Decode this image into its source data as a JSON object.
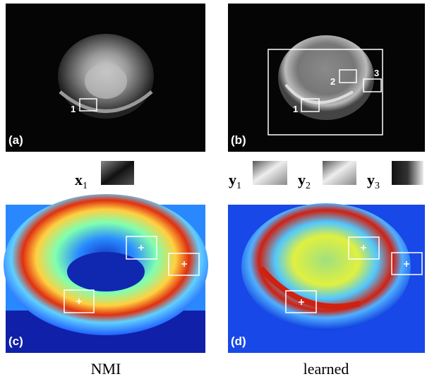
{
  "panels": [
    {
      "label": "(a)",
      "boxes": [
        "1"
      ]
    },
    {
      "label": "(b)",
      "boxes": [
        "1",
        "2",
        "3"
      ]
    },
    {
      "label": "(c)"
    },
    {
      "label": "(d)"
    }
  ],
  "patches": [
    {
      "symbol": "x",
      "subscript": "1"
    },
    {
      "symbol": "y",
      "subscript": "1"
    },
    {
      "symbol": "y",
      "subscript": "2"
    },
    {
      "symbol": "y",
      "subscript": "3"
    }
  ],
  "captions": [
    "NMI",
    "learned"
  ]
}
